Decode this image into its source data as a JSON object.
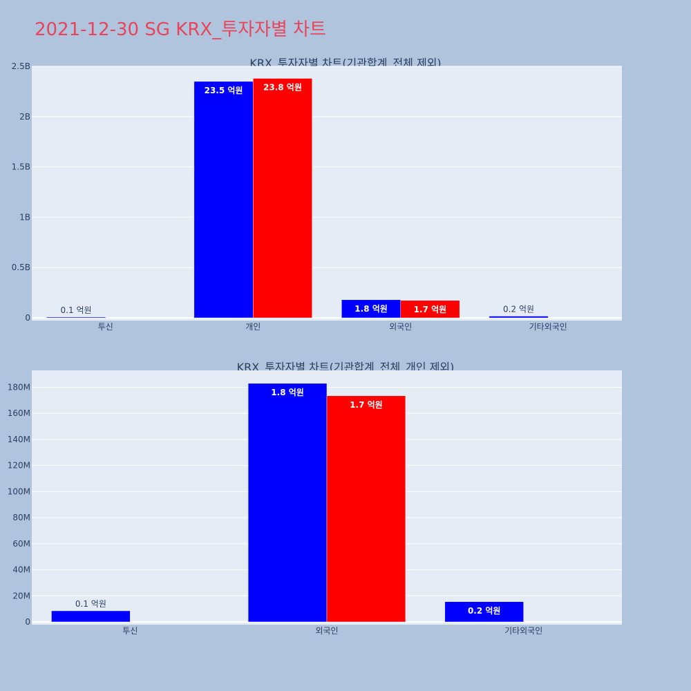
{
  "page": {
    "title": "2021-12-30 SG KRX_투자자별 차트"
  },
  "colors": {
    "background": "#b0c4de",
    "plot_background": "#e5ecf6",
    "title": "#e8455a",
    "series_1": "#0000ff",
    "series_2": "#ff0000",
    "text": "#2a3f5f"
  },
  "chart_data": [
    {
      "type": "bar",
      "title": "KRX_투자자별 차트(기관합계_전체 제외)",
      "categories": [
        "투신",
        "개인",
        "외국인",
        "기타외국인"
      ],
      "ylim": [
        0,
        2500000000
      ],
      "yticks": [
        {
          "value": 0,
          "label": "0"
        },
        {
          "value": 500000000,
          "label": "0.5B"
        },
        {
          "value": 1000000000,
          "label": "1B"
        },
        {
          "value": 1500000000,
          "label": "1.5B"
        },
        {
          "value": 2000000000,
          "label": "2B"
        },
        {
          "value": 2500000000,
          "label": "2.5B"
        }
      ],
      "grid": true,
      "series": [
        {
          "values": [
            8000000,
            2350000000,
            180000000,
            17000000
          ],
          "labels": [
            "0.1 억원",
            "23.5 억원",
            "1.8 억원",
            "0.2 억원"
          ]
        },
        {
          "values": [
            null,
            2380000000,
            173000000,
            null
          ],
          "labels": [
            null,
            "23.8 억원",
            "1.7 억원",
            null
          ]
        }
      ]
    },
    {
      "type": "bar",
      "title": "KRX_투자자별 차트(기관합계_전체_개인 제외)",
      "categories": [
        "투신",
        "외국인",
        "기타외국인"
      ],
      "ylim": [
        0,
        193000000
      ],
      "yticks": [
        {
          "value": 0,
          "label": "0"
        },
        {
          "value": 20000000,
          "label": "20M"
        },
        {
          "value": 40000000,
          "label": "40M"
        },
        {
          "value": 60000000,
          "label": "60M"
        },
        {
          "value": 80000000,
          "label": "80M"
        },
        {
          "value": 100000000,
          "label": "100M"
        },
        {
          "value": 120000000,
          "label": "120M"
        },
        {
          "value": 140000000,
          "label": "140M"
        },
        {
          "value": 160000000,
          "label": "160M"
        },
        {
          "value": 180000000,
          "label": "180M"
        }
      ],
      "grid": true,
      "series": [
        {
          "values": [
            8500000,
            183000000,
            15500000
          ],
          "labels": [
            "0.1 억원",
            "1.8 억원",
            "0.2 억원"
          ]
        },
        {
          "values": [
            null,
            173500000,
            null
          ],
          "labels": [
            null,
            "1.7 억원",
            null
          ]
        }
      ]
    }
  ]
}
